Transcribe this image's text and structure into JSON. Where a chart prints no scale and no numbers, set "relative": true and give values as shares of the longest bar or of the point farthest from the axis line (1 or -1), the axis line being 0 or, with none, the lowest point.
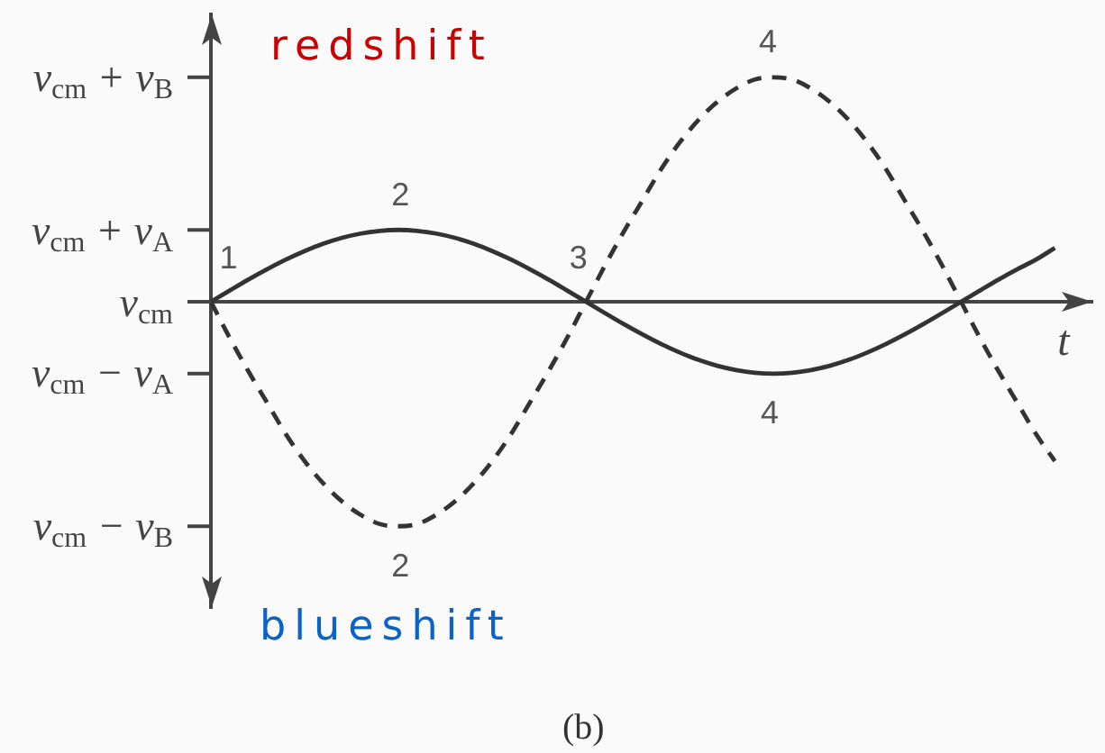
{
  "chart_data": {
    "type": "line",
    "xlabel": "t",
    "relative": true,
    "categories": [
      null,
      null,
      null,
      null,
      null,
      null,
      null,
      null,
      null,
      null,
      null,
      null,
      null,
      null,
      null,
      null,
      null,
      null,
      null,
      null,
      null,
      null,
      null,
      null,
      null,
      null,
      null,
      null,
      null,
      null,
      null,
      null,
      null,
      null,
      null,
      null,
      null,
      null,
      null,
      null,
      null,
      null,
      null,
      null,
      null,
      null,
      null,
      null
    ],
    "series": [
      {
        "color": "#333333",
        "line_style": "solid",
        "values": [
          0,
          0.05,
          0.099,
          0.145,
          0.188,
          0.226,
          0.259,
          0.285,
          0.304,
          0.316,
          0.32,
          0.316,
          0.304,
          0.285,
          0.259,
          0.226,
          0.188,
          0.145,
          0.099,
          0.05,
          0,
          -0.05,
          -0.099,
          -0.145,
          -0.188,
          -0.226,
          -0.259,
          -0.285,
          -0.304,
          -0.316,
          -0.32,
          -0.316,
          -0.304,
          -0.285,
          -0.259,
          -0.226,
          -0.188,
          -0.145,
          -0.099,
          -0.05,
          0,
          0.05,
          0.099,
          0.145,
          0.188,
          0.24,
          null,
          null
        ]
      },
      {
        "color": "#333333",
        "line_style": "dashed",
        "values": [
          0,
          -0.16,
          -0.31,
          -0.45,
          -0.59,
          -0.71,
          -0.81,
          -0.89,
          -0.95,
          -0.99,
          -1,
          -0.99,
          -0.95,
          -0.89,
          -0.81,
          -0.71,
          -0.59,
          -0.45,
          -0.31,
          -0.16,
          0,
          0.16,
          0.31,
          0.45,
          0.59,
          0.71,
          0.81,
          0.89,
          0.95,
          0.99,
          1,
          0.99,
          0.95,
          0.89,
          0.81,
          0.71,
          0.59,
          0.45,
          0.31,
          0.16,
          0,
          -0.16,
          -0.31,
          -0.45,
          -0.59,
          -0.71,
          null,
          null
        ]
      }
    ],
    "tick_labels": "y",
    "grid": false,
    "legend": false,
    "marker": "none",
    "annotations": [
      "redshift",
      "blueshift",
      "(b)",
      "v$_{cm}$ + v$_{B}$",
      "v$_{cm}$ + v$_{A}$",
      "v$_{cm}$",
      "v$_{cm}$ − v$_{A}$",
      "v$_{cm}$ − v$_{B}$",
      {
        "text": "1",
        "y": 0
      },
      {
        "text": "2",
        "y": 0.32
      },
      {
        "text": "3",
        "y": 0
      },
      {
        "text": "4",
        "y": -0.32
      },
      {
        "text": "2",
        "y": -1
      },
      {
        "text": "4",
        "y": 1
      }
    ]
  }
}
